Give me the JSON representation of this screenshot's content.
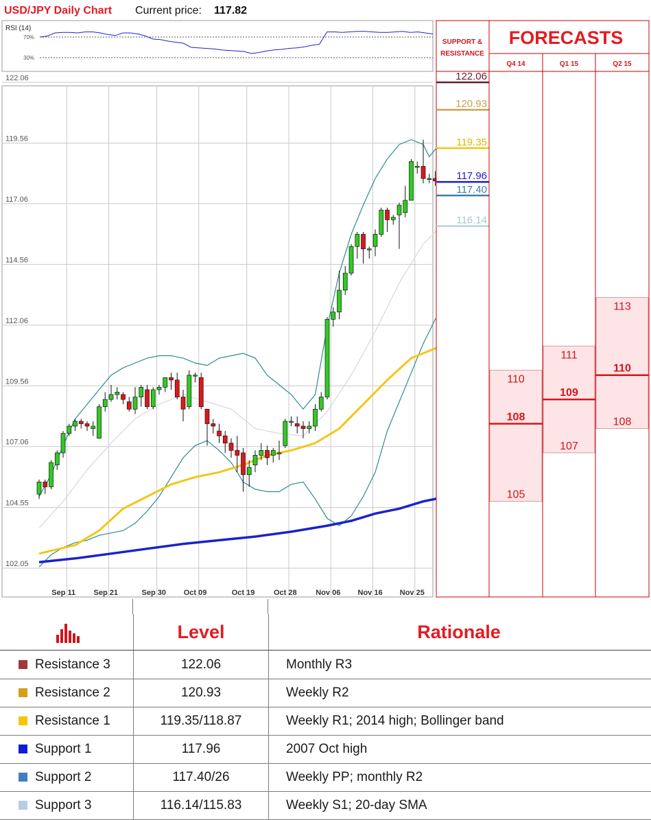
{
  "header": {
    "chart_title": "USD/JPY Daily Chart",
    "price_label": "Current price:",
    "price_value": "117.82"
  },
  "rsi": {
    "label": "RSI (14)",
    "level_high": "70%",
    "level_low": "30%",
    "values": [
      70,
      72,
      78,
      79,
      79,
      78,
      80,
      80,
      78,
      75,
      73,
      78,
      78,
      76,
      72,
      66,
      65,
      62,
      60,
      58,
      50,
      49,
      48,
      47,
      45,
      44,
      43,
      42,
      38,
      40,
      43,
      45,
      46,
      48,
      49,
      51,
      54,
      56,
      80,
      80,
      79,
      80,
      81,
      81,
      80,
      79,
      79,
      80,
      81,
      79,
      80,
      78,
      76
    ]
  },
  "colors": {
    "bull": "#2ecc22",
    "bear": "#e0161d",
    "bollinger": "#2a8c8c",
    "sma20": "#d8d8d8",
    "sma50": "#f5c518",
    "sma100": "#1a23c9",
    "grid": "#c9c9c9",
    "panel_border": "#cc0000",
    "forecast_fill": "#fde4e6",
    "forecast_text": "#d0161d"
  },
  "chart_data": {
    "type": "candlestick",
    "ylim": [
      102.05,
      123.0
    ],
    "y_ticks": [
      "122.06",
      "119.56",
      "117.06",
      "114.56",
      "112.06",
      "109.56",
      "107.06",
      "104.55",
      "102.05"
    ],
    "y_tick_values": [
      122.06,
      119.56,
      117.06,
      114.56,
      112.06,
      109.56,
      107.06,
      104.55,
      102.05
    ],
    "x_ticks": [
      "Sep 11",
      "Sep 21",
      "Sep 30",
      "Oct 09",
      "Oct 19",
      "Oct 28",
      "Nov 06",
      "Nov 16",
      "Nov 25"
    ],
    "x_tick_index": [
      3,
      10,
      18,
      25,
      33,
      40,
      47,
      54,
      61
    ],
    "candles": [
      [
        105.1,
        105.6,
        105.7,
        104.9
      ],
      [
        105.6,
        105.4,
        105.7,
        105.1
      ],
      [
        105.4,
        106.4,
        106.5,
        105.3
      ],
      [
        106.3,
        106.8,
        106.9,
        106.1
      ],
      [
        106.8,
        107.6,
        107.7,
        106.6
      ],
      [
        107.6,
        107.9,
        108.0,
        107.5
      ],
      [
        107.9,
        108.1,
        108.2,
        107.7
      ],
      [
        108.1,
        108.0,
        108.2,
        107.8
      ],
      [
        108.0,
        107.9,
        108.1,
        107.7
      ],
      [
        107.8,
        107.9,
        108.1,
        107.5
      ],
      [
        107.4,
        108.7,
        108.8,
        107.4
      ],
      [
        108.7,
        109.0,
        109.3,
        108.5
      ],
      [
        109.0,
        109.2,
        109.6,
        108.9
      ],
      [
        109.2,
        109.3,
        109.5,
        109.0
      ],
      [
        109.2,
        109.0,
        109.3,
        108.8
      ],
      [
        108.9,
        108.6,
        109.1,
        108.5
      ],
      [
        108.6,
        109.1,
        109.5,
        108.4
      ],
      [
        109.1,
        109.5,
        109.6,
        108.7
      ],
      [
        109.4,
        108.7,
        109.6,
        108.6
      ],
      [
        108.7,
        109.4,
        109.5,
        108.6
      ],
      [
        109.4,
        109.5,
        109.6,
        109.2
      ],
      [
        109.5,
        109.9,
        109.9,
        109.3
      ],
      [
        109.9,
        109.8,
        110.1,
        109.4
      ],
      [
        109.8,
        109.1,
        110.1,
        109.0
      ],
      [
        109.1,
        108.6,
        109.4,
        108.1
      ],
      [
        108.7,
        110.0,
        110.2,
        108.6
      ],
      [
        110.0,
        110.0,
        110.1,
        109.7
      ],
      [
        109.9,
        108.7,
        110.1,
        108.6
      ],
      [
        108.6,
        108.0,
        108.6,
        107.1
      ],
      [
        108.0,
        107.9,
        108.2,
        107.6
      ],
      [
        107.7,
        107.5,
        108.0,
        107.2
      ],
      [
        107.5,
        107.2,
        107.7,
        106.8
      ],
      [
        107.2,
        106.9,
        107.4,
        106.6
      ],
      [
        106.9,
        106.7,
        107.5,
        106.0
      ],
      [
        106.8,
        105.9,
        107.0,
        105.2
      ],
      [
        105.9,
        106.2,
        106.5,
        105.4
      ],
      [
        106.3,
        106.7,
        106.9,
        106.0
      ],
      [
        106.7,
        106.9,
        107.2,
        106.5
      ],
      [
        106.9,
        106.6,
        107.1,
        106.3
      ],
      [
        106.7,
        106.9,
        107.0,
        106.4
      ],
      [
        106.8,
        106.8,
        107.3,
        106.5
      ],
      [
        107.1,
        108.1,
        108.2,
        107.0
      ],
      [
        108.1,
        108.1,
        108.3,
        107.9
      ],
      [
        108.0,
        107.9,
        108.3,
        107.6
      ],
      [
        107.9,
        107.8,
        108.1,
        107.4
      ],
      [
        107.8,
        107.9,
        108.1,
        107.6
      ],
      [
        107.9,
        108.6,
        108.8,
        107.7
      ],
      [
        108.6,
        109.1,
        109.3,
        108.5
      ],
      [
        109.1,
        112.3,
        112.4,
        109.0
      ],
      [
        112.3,
        112.6,
        112.8,
        112.0
      ],
      [
        112.6,
        113.5,
        114.3,
        112.3
      ],
      [
        113.5,
        114.2,
        114.5,
        113.3
      ],
      [
        114.2,
        115.3,
        115.4,
        114.1
      ],
      [
        115.3,
        115.8,
        115.9,
        114.8
      ],
      [
        115.8,
        115.2,
        115.9,
        114.6
      ],
      [
        115.2,
        115.2,
        115.3,
        114.8
      ],
      [
        115.3,
        115.8,
        116.0,
        114.9
      ],
      [
        115.8,
        116.8,
        116.9,
        115.7
      ],
      [
        116.8,
        116.4,
        116.9,
        115.9
      ],
      [
        116.4,
        116.5,
        116.6,
        116.2
      ],
      [
        116.6,
        117.0,
        117.1,
        115.2
      ],
      [
        116.7,
        117.2,
        117.8,
        116.5
      ],
      [
        117.2,
        118.8,
        118.9,
        117.2
      ],
      [
        118.6,
        118.6,
        118.8,
        118.3
      ],
      [
        118.6,
        118.1,
        119.7,
        117.9
      ],
      [
        118.1,
        118.1,
        118.3,
        117.9
      ],
      [
        118.1,
        118.0,
        118.4,
        117.8
      ],
      [
        117.9,
        118.9,
        118.9,
        117.8
      ],
      [
        118.9,
        118.2,
        119.0,
        118.1
      ]
    ],
    "bollinger_upper": [
      [
        0,
        105.0
      ],
      [
        2,
        105.9
      ],
      [
        4,
        107.1
      ],
      [
        6,
        108.2
      ],
      [
        8,
        108.8
      ],
      [
        10,
        109.4
      ],
      [
        12,
        110.0
      ],
      [
        14,
        110.3
      ],
      [
        16,
        110.5
      ],
      [
        18,
        110.7
      ],
      [
        20,
        110.8
      ],
      [
        22,
        110.8
      ],
      [
        24,
        110.7
      ],
      [
        26,
        110.5
      ],
      [
        28,
        110.4
      ],
      [
        30,
        110.7
      ],
      [
        32,
        110.8
      ],
      [
        34,
        110.9
      ],
      [
        36,
        110.7
      ],
      [
        38,
        110.0
      ],
      [
        40,
        109.6
      ],
      [
        42,
        109.2
      ],
      [
        44,
        108.6
      ],
      [
        46,
        109.2
      ],
      [
        48,
        112.0
      ],
      [
        50,
        114.2
      ],
      [
        52,
        115.8
      ],
      [
        54,
        117.0
      ],
      [
        56,
        118.1
      ],
      [
        58,
        118.9
      ],
      [
        60,
        119.5
      ],
      [
        62,
        119.7
      ],
      [
        64,
        119.5
      ],
      [
        65,
        119.0
      ],
      [
        66,
        119.3
      ],
      [
        68,
        119.4
      ]
    ],
    "bollinger_lower": [
      [
        0,
        102.1
      ],
      [
        2,
        102.6
      ],
      [
        4,
        102.9
      ],
      [
        6,
        103.1
      ],
      [
        8,
        103.2
      ],
      [
        10,
        103.4
      ],
      [
        12,
        103.5
      ],
      [
        14,
        103.6
      ],
      [
        16,
        103.9
      ],
      [
        18,
        104.4
      ],
      [
        20,
        105.0
      ],
      [
        22,
        105.8
      ],
      [
        24,
        106.6
      ],
      [
        26,
        107.1
      ],
      [
        28,
        107.3
      ],
      [
        30,
        106.9
      ],
      [
        32,
        106.4
      ],
      [
        34,
        105.6
      ],
      [
        36,
        105.3
      ],
      [
        38,
        105.2
      ],
      [
        40,
        105.2
      ],
      [
        42,
        105.5
      ],
      [
        44,
        105.6
      ],
      [
        46,
        104.9
      ],
      [
        48,
        104.1
      ],
      [
        50,
        103.8
      ],
      [
        52,
        104.2
      ],
      [
        54,
        105.0
      ],
      [
        56,
        106.0
      ],
      [
        58,
        107.7
      ],
      [
        60,
        108.9
      ],
      [
        62,
        110.1
      ],
      [
        64,
        111.3
      ],
      [
        66,
        112.3
      ],
      [
        68,
        112.9
      ]
    ],
    "sma20": [
      [
        0,
        103.7
      ],
      [
        4,
        104.8
      ],
      [
        8,
        106.1
      ],
      [
        12,
        107.2
      ],
      [
        16,
        108.2
      ],
      [
        20,
        108.8
      ],
      [
        24,
        109.2
      ],
      [
        28,
        108.9
      ],
      [
        32,
        108.6
      ],
      [
        36,
        107.8
      ],
      [
        40,
        107.6
      ],
      [
        44,
        107.5
      ],
      [
        48,
        108.5
      ],
      [
        52,
        110.0
      ],
      [
        56,
        111.8
      ],
      [
        60,
        113.8
      ],
      [
        64,
        115.4
      ],
      [
        68,
        116.4
      ]
    ],
    "sma50": [
      [
        0,
        102.65
      ],
      [
        6,
        103.0
      ],
      [
        10,
        103.6
      ],
      [
        14,
        104.5
      ],
      [
        18,
        105.0
      ],
      [
        22,
        105.5
      ],
      [
        26,
        105.8
      ],
      [
        30,
        106.0
      ],
      [
        34,
        106.3
      ],
      [
        38,
        106.7
      ],
      [
        42,
        106.9
      ],
      [
        46,
        107.2
      ],
      [
        50,
        107.8
      ],
      [
        54,
        108.8
      ],
      [
        58,
        109.8
      ],
      [
        62,
        110.7
      ],
      [
        66,
        111.1
      ],
      [
        68,
        111.3
      ]
    ],
    "sma100": [
      [
        0,
        102.3
      ],
      [
        6,
        102.45
      ],
      [
        12,
        102.65
      ],
      [
        18,
        102.85
      ],
      [
        24,
        103.05
      ],
      [
        30,
        103.2
      ],
      [
        36,
        103.35
      ],
      [
        42,
        103.55
      ],
      [
        48,
        103.8
      ],
      [
        52,
        104.0
      ],
      [
        56,
        104.3
      ],
      [
        60,
        104.5
      ],
      [
        64,
        104.8
      ],
      [
        68,
        105.0
      ]
    ]
  },
  "support_resistance": {
    "title_line1": "SUPPORT &",
    "title_line2": "RESISTANCE",
    "levels": [
      {
        "label": "122.06",
        "value": 122.06,
        "color": "#6b1b2e",
        "text_color": "#6b1b2e"
      },
      {
        "label": "120.93",
        "value": 120.93,
        "color": "#c9a14f",
        "text_color": "#c9a14f"
      },
      {
        "label": "119.35",
        "value": 119.35,
        "color": "#f5c518",
        "text_color": "#e7b400"
      },
      {
        "label": "117.96",
        "value": 117.96,
        "color": "#1b1bd0",
        "text_color": "#1b1bd0"
      },
      {
        "label": "117.40",
        "value": 117.4,
        "color": "#3f7ea6",
        "text_color": "#3f7ea6"
      },
      {
        "label": "116.14",
        "value": 116.14,
        "color": "#b7d2d6",
        "text_color": "#a8c8cc"
      }
    ]
  },
  "forecasts": {
    "title": "FORECASTS",
    "columns": [
      {
        "label": "Q4 14",
        "high": 110,
        "mid": 108,
        "low": 105,
        "high_label": "110",
        "mid_label": "108",
        "low_label": "105"
      },
      {
        "label": "Q1 15",
        "high": 111,
        "mid": 109,
        "low": 107,
        "high_label": "111",
        "mid_label": "109",
        "low_label": "107"
      },
      {
        "label": "Q2 15",
        "high": 113,
        "mid": 110,
        "low": 108,
        "high_label": "113",
        "mid_label": "110",
        "low_label": "108"
      }
    ]
  },
  "levels_table": {
    "header_level": "Level",
    "header_rationale": "Rationale",
    "rows": [
      {
        "name": "Resistance 3",
        "level": "122.06",
        "rationale": "Monthly R3",
        "color": "#9e3b3b"
      },
      {
        "name": "Resistance 2",
        "level": "120.93",
        "rationale": "Weekly R2",
        "color": "#d4a017"
      },
      {
        "name": "Resistance 1",
        "level": "119.35/118.87",
        "rationale": "Weekly R1; 2014 high; Bollinger band",
        "color": "#f7c600"
      },
      {
        "name": "Support 1",
        "level": "117.96",
        "rationale": "2007 Oct high",
        "color": "#0a1ed6"
      },
      {
        "name": "Support 2",
        "level": "117.40/26",
        "rationale": "Weekly PP; monthly R2",
        "color": "#3f7fbf"
      },
      {
        "name": "Support 3",
        "level": "116.14/115.83",
        "rationale": "Weekly S1; 20-day SMA",
        "color": "#b7cde6"
      }
    ]
  }
}
